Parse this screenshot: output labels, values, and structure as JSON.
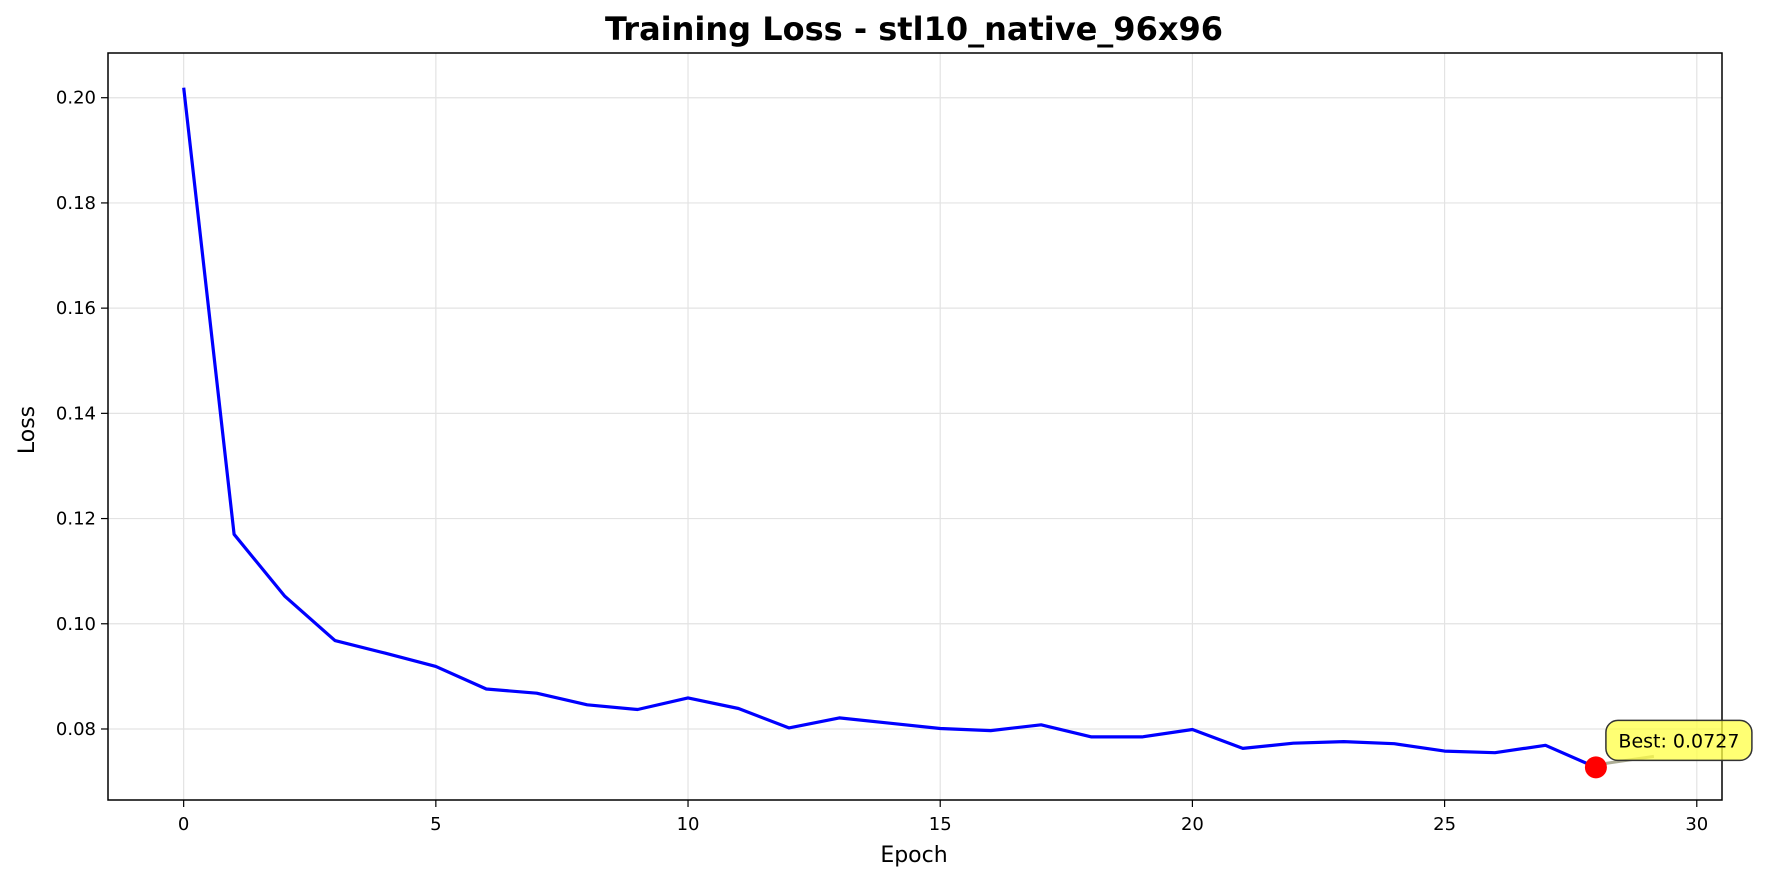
{
  "chart_data": {
    "type": "line",
    "title": "Training Loss - stl10_native_96x96",
    "xlabel": "Epoch",
    "ylabel": "Loss",
    "xlim": [
      -1.5,
      30.5
    ],
    "ylim": [
      0.0665,
      0.2085
    ],
    "xticks": [
      0,
      5,
      10,
      15,
      20,
      25,
      30
    ],
    "yticks": [
      0.08,
      0.1,
      0.12,
      0.14,
      0.16,
      0.18,
      0.2
    ],
    "ytick_labels": [
      "0.08",
      "0.10",
      "0.12",
      "0.14",
      "0.16",
      "0.18",
      "0.20"
    ],
    "grid": true,
    "series": [
      {
        "color": "#0000ff",
        "x": [
          0,
          1,
          2,
          3,
          4,
          5,
          6,
          7,
          8,
          9,
          10,
          11,
          12,
          13,
          14,
          15,
          16,
          17,
          18,
          19,
          20,
          21,
          22,
          23,
          24,
          25,
          26,
          27,
          28
        ],
        "y": [
          0.2019,
          0.117,
          0.1053,
          0.0968,
          0.0944,
          0.0919,
          0.0876,
          0.0868,
          0.0846,
          0.0837,
          0.0859,
          0.0839,
          0.0802,
          0.0821,
          0.0811,
          0.0801,
          0.0797,
          0.0808,
          0.0785,
          0.0785,
          0.0799,
          0.0763,
          0.0773,
          0.0776,
          0.0772,
          0.0758,
          0.0755,
          0.0769,
          0.0727
        ]
      }
    ],
    "best_point": {
      "x": 28,
      "y": 0.0727,
      "color": "#ff0000"
    },
    "annotation": {
      "text": "Best: 0.0727",
      "background": "#ffff44"
    }
  }
}
